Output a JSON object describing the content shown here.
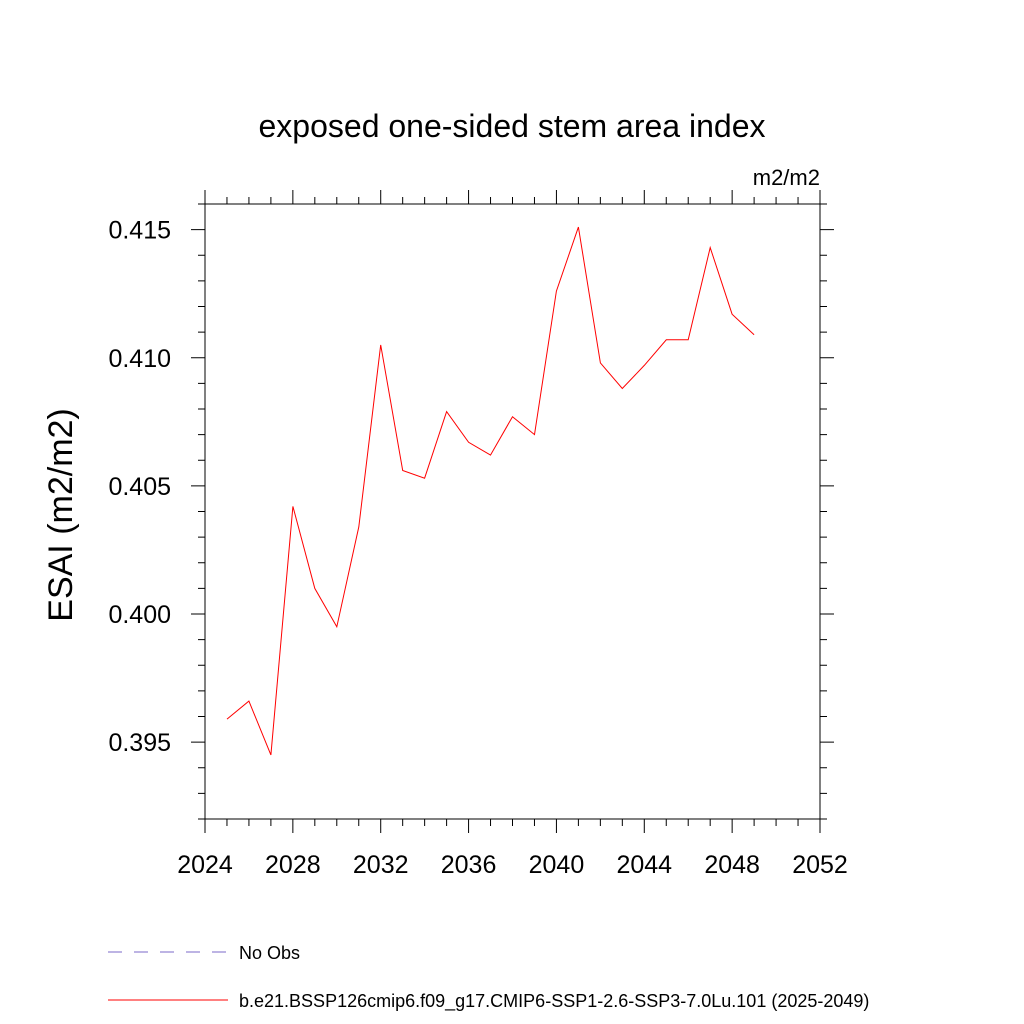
{
  "chart_data": {
    "type": "line",
    "title": "exposed one-sided stem area index",
    "units_label": "m2/m2",
    "xlabel": "",
    "ylabel": "ESAI  (m2/m2)",
    "xlim": [
      2024,
      2052
    ],
    "ylim": [
      0.392,
      0.416
    ],
    "x_ticks": [
      2024,
      2028,
      2032,
      2036,
      2040,
      2044,
      2048,
      2052
    ],
    "x_tick_labels": [
      "2024",
      "2028",
      "2032",
      "2036",
      "2040",
      "2044",
      "2048",
      "2052"
    ],
    "y_ticks": [
      0.395,
      0.4,
      0.405,
      0.41,
      0.415
    ],
    "y_tick_labels": [
      "0.395",
      "0.400",
      "0.405",
      "0.410",
      "0.415"
    ],
    "grid": false,
    "legend_position": "bottom",
    "series": [
      {
        "name": "b.e21.BSSP126cmip6.f09_g17.CMIP6-SSP1-2.6-SSP3-7.0Lu.101 (2025-2049)",
        "color": "#ff0000",
        "style": "solid",
        "x": [
          2025,
          2026,
          2027,
          2028,
          2029,
          2030,
          2031,
          2032,
          2033,
          2034,
          2035,
          2036,
          2037,
          2038,
          2039,
          2040,
          2041,
          2042,
          2043,
          2044,
          2045,
          2046,
          2047,
          2048,
          2049
        ],
        "y": [
          0.3959,
          0.3966,
          0.3945,
          0.4042,
          0.401,
          0.3995,
          0.4034,
          0.4105,
          0.4056,
          0.4053,
          0.4079,
          0.4067,
          0.4062,
          0.4077,
          0.407,
          0.4126,
          0.4151,
          0.4098,
          0.4088,
          0.4097,
          0.4107,
          0.4107,
          0.4143,
          0.4117,
          0.4109
        ]
      }
    ],
    "legend": [
      {
        "label": "No Obs",
        "color": "#7b68c8",
        "style": "dashed"
      },
      {
        "label": "b.e21.BSSP126cmip6.f09_g17.CMIP6-SSP1-2.6-SSP3-7.0Lu.101 (2025-2049)",
        "color": "#ff0000",
        "style": "solid"
      }
    ]
  }
}
